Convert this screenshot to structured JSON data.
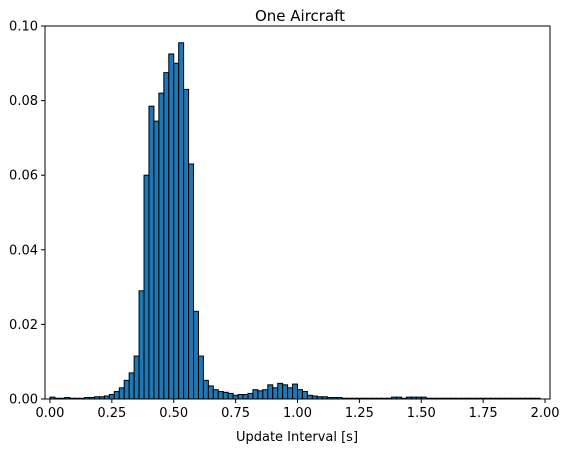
{
  "chart_data": {
    "type": "bar",
    "title": "One Aircraft",
    "xlabel": "Update Interval [s]",
    "ylabel": "",
    "xlim": [
      -0.02,
      2.02
    ],
    "ylim": [
      0,
      0.1
    ],
    "bin_width": 0.02,
    "bar_color": "#1f77b4",
    "edge_color": "#000000",
    "grid": false,
    "x_ticks": [
      {
        "value": 0.0,
        "label": "0.00"
      },
      {
        "value": 0.25,
        "label": "0.25"
      },
      {
        "value": 0.5,
        "label": "0.50"
      },
      {
        "value": 0.75,
        "label": "0.75"
      },
      {
        "value": 1.0,
        "label": "1.00"
      },
      {
        "value": 1.25,
        "label": "1.25"
      },
      {
        "value": 1.5,
        "label": "1.50"
      },
      {
        "value": 1.75,
        "label": "1.75"
      },
      {
        "value": 2.0,
        "label": "2.00"
      }
    ],
    "y_ticks": [
      {
        "value": 0.0,
        "label": "0.00"
      },
      {
        "value": 0.02,
        "label": "0.02"
      },
      {
        "value": 0.04,
        "label": "0.04"
      },
      {
        "value": 0.06,
        "label": "0.06"
      },
      {
        "value": 0.08,
        "label": "0.08"
      },
      {
        "value": 0.1,
        "label": "0.10"
      }
    ],
    "bin_starts": [
      0.0,
      0.02,
      0.04,
      0.06,
      0.08,
      0.1,
      0.12,
      0.14,
      0.16,
      0.18,
      0.2,
      0.22,
      0.24,
      0.26,
      0.28,
      0.3,
      0.32,
      0.34,
      0.36,
      0.38,
      0.4,
      0.42,
      0.44,
      0.46,
      0.48,
      0.5,
      0.52,
      0.54,
      0.56,
      0.58,
      0.6,
      0.62,
      0.64,
      0.66,
      0.68,
      0.7,
      0.72,
      0.74,
      0.76,
      0.78,
      0.8,
      0.82,
      0.84,
      0.86,
      0.88,
      0.9,
      0.92,
      0.94,
      0.96,
      0.98,
      1.0,
      1.02,
      1.04,
      1.06,
      1.08,
      1.1,
      1.12,
      1.14,
      1.16,
      1.18,
      1.2,
      1.22,
      1.24,
      1.26,
      1.28,
      1.3,
      1.32,
      1.34,
      1.36,
      1.38,
      1.4,
      1.42,
      1.44,
      1.46,
      1.48,
      1.5,
      1.52,
      1.54,
      1.56,
      1.58,
      1.6,
      1.62,
      1.64,
      1.66,
      1.68,
      1.7,
      1.72,
      1.74,
      1.76,
      1.78,
      1.8,
      1.82,
      1.84,
      1.86,
      1.88,
      1.9,
      1.92,
      1.94,
      1.96
    ],
    "values": [
      0.0005,
      0.0002,
      0.0002,
      0.0004,
      0.0002,
      0.0002,
      0.0002,
      0.0004,
      0.0004,
      0.0006,
      0.0006,
      0.0008,
      0.0012,
      0.002,
      0.003,
      0.005,
      0.007,
      0.0115,
      0.029,
      0.06,
      0.0785,
      0.0745,
      0.082,
      0.0875,
      0.0925,
      0.09,
      0.0955,
      0.083,
      0.063,
      0.0235,
      0.0115,
      0.005,
      0.0035,
      0.0025,
      0.002,
      0.0018,
      0.0015,
      0.001,
      0.0012,
      0.0012,
      0.0015,
      0.0025,
      0.0022,
      0.0025,
      0.0038,
      0.003,
      0.0042,
      0.0038,
      0.003,
      0.004,
      0.0025,
      0.002,
      0.001,
      0.0008,
      0.0006,
      0.0006,
      0.0004,
      0.0004,
      0.0004,
      0.0002,
      0.0002,
      0.0002,
      0.0002,
      0.0002,
      0.0002,
      0.0002,
      0.0002,
      0.0002,
      0.0002,
      0.0005,
      0.0005,
      0.0002,
      0.0005,
      0.0005,
      0.0005,
      0.0005,
      0.0002,
      0.0002,
      0.0002,
      0.0002,
      0.0002,
      0.0002,
      0.0002,
      0.0002,
      0.0002,
      0.0002,
      0.0002,
      0.0002,
      0.0002,
      0.0002,
      0.0002,
      0.0002,
      0.0002,
      0.0002,
      0.0002,
      0.0002,
      0.0002,
      0.0002,
      0.0002
    ]
  }
}
